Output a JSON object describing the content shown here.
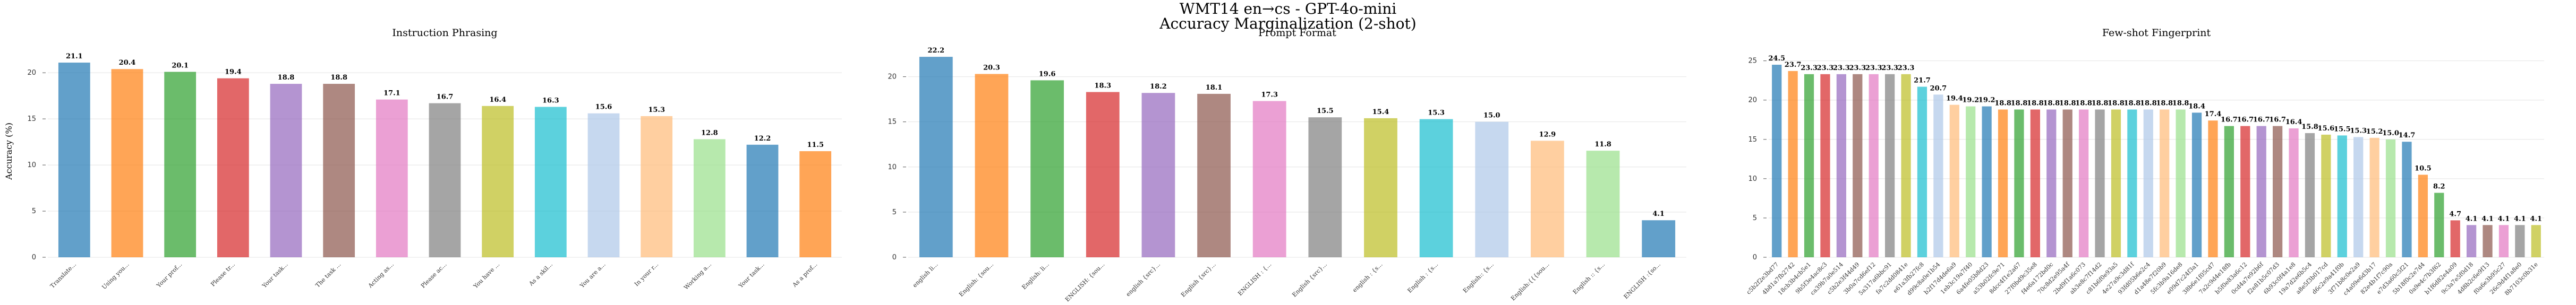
{
  "figure": {
    "title_line1": "WMT14 en→cs - GPT-4o-mini",
    "title_line2": "Accuracy Marginalization (2-shot)"
  },
  "palette": [
    "#1f77b4",
    "#ff7f0e",
    "#2ca02c",
    "#d62728",
    "#9467bd",
    "#8c564b",
    "#e377c2",
    "#7f7f7f",
    "#bcbd22",
    "#17becf",
    "#aec7e8",
    "#ffbb78",
    "#98df8a"
  ],
  "chart_data": [
    {
      "type": "bar",
      "title": "Instruction Phrasing",
      "ylabel": "Accuracy (%)",
      "ylim": [
        0,
        23
      ],
      "yticks": [
        0,
        5,
        10,
        15,
        20
      ],
      "grid": "horizontal",
      "categories": [
        "Translate...",
        "Using you...",
        "Your prof...",
        "Please tr...",
        "Your task...",
        "The task ...",
        "Acting as...",
        "Please ac...",
        "You have ...",
        "As a skil...",
        "You are a...",
        "In your r...",
        "Working a...",
        "Your task...",
        "As a prof..."
      ],
      "values": [
        21.1,
        20.4,
        20.1,
        19.4,
        18.8,
        18.8,
        17.1,
        16.7,
        16.4,
        16.3,
        15.6,
        15.3,
        12.8,
        12.2,
        11.5
      ],
      "value_labels": [
        "21.1",
        "20.4",
        "20.1",
        "19.4",
        "18.8",
        "18.8",
        "17.1",
        "16.7",
        "16.4",
        "16.3",
        "15.6",
        "15.3",
        "12.8",
        "12.2",
        "11.5"
      ]
    },
    {
      "type": "bar",
      "title": "Prompt Format",
      "ylim": [
        0,
        23.5
      ],
      "yticks": [
        0,
        5,
        10,
        15,
        20
      ],
      "grid": "horizontal",
      "categories": [
        "english li...",
        "English: {sou...",
        "English: li...",
        "ENGLISH: {sou...",
        "english {src}...",
        "English {src}...",
        "ENGLISH : {...",
        "English {src}...",
        "english : {s...",
        "English : {s...",
        "English:: {s...",
        "English:{{{sou...",
        "English :: {s...",
        "ENGLISH :{so..."
      ],
      "values": [
        22.2,
        20.3,
        19.6,
        18.3,
        18.2,
        18.1,
        17.3,
        15.5,
        15.4,
        15.3,
        15.0,
        12.9,
        11.8,
        4.1
      ],
      "value_labels": [
        "22.2",
        "20.3",
        "19.6",
        "18.3",
        "18.2",
        "18.1",
        "17.3",
        "15.5",
        "15.4",
        "15.3",
        "15.0",
        "12.9",
        "11.8",
        "4.1"
      ]
    },
    {
      "type": "bar",
      "title": "Few-shot Fingerprint",
      "ylim": [
        0,
        27
      ],
      "yticks": [
        0,
        5,
        10,
        15,
        20,
        25
      ],
      "grid": "horizontal",
      "categories": [
        "c5b2f2e3bd77",
        "4b81a7fb2742",
        "18cb3b4cb5e1",
        "9b5f3e4ac8c3",
        "ca39b7a0e514",
        "c5b2e3f44d49",
        "3b0a7cd6ef12",
        "5a317a6bbc91",
        "fa7c2dd0841e",
        "e61a3fb27fc8",
        "d99c8a0e1b54",
        "b2f17d4de6a9",
        "1eb3c19a7f40",
        "6a4fe05b8d23",
        "a53b02fc9e71",
        "8dcc4f1e2a67",
        "27f0bd9c35e8",
        "f4e6a172bd0c",
        "70c8d2e95a4f",
        "2bd9f1a6c073",
        "ab3e8c7f14d2",
        "c81b6f0e93a5",
        "4e27a9c3d81f",
        "93fd05b6e2c4",
        "d1a48e7f20b9",
        "5fc3b9a16de8",
        "e09d7c24f3a1",
        "38b6e1f05cd7",
        "7a2c9d4e18fb",
        "b5f0e83a6c12",
        "0cd4a7e92b6f",
        "f2e81b5c07d3",
        "6b93c0f4a1e8",
        "19a7d2e6b5c4",
        "a8e5f3b017cd",
        "d6c2e9a41f0b",
        "3f71b8c0e2a9",
        "c4a09e6d3b17",
        "82e4b1f7c90a",
        "e7d3a60c5f21",
        "5b18f0c2e7d4",
        "0a9e4c7b3f62",
        "b1f6d82e4a09",
        "9c3a7e5f0d18",
        "4d8b2c6e9f13",
        "f0a6e3b95c27",
        "26c9d4f1a8e0",
        "8b7103c0b31e"
      ],
      "values": [
        24.5,
        23.7,
        23.3,
        23.3,
        23.3,
        23.3,
        23.3,
        23.3,
        23.3,
        21.7,
        20.7,
        19.4,
        19.2,
        19.2,
        18.8,
        18.8,
        18.8,
        18.8,
        18.8,
        18.8,
        18.8,
        18.8,
        18.8,
        18.8,
        18.8,
        18.8,
        18.4,
        17.4,
        16.7,
        16.7,
        16.7,
        16.7,
        16.4,
        15.8,
        15.6,
        15.5,
        15.3,
        15.2,
        15.0,
        14.7,
        10.5,
        8.2,
        4.7,
        4.1,
        4.1,
        4.1,
        4.1,
        4.1
      ],
      "value_labels": [
        "24.5",
        "23.7",
        "23.3",
        "23.3",
        "23.3",
        "23.3",
        "23.3",
        "23.3",
        "23.3",
        "21.7",
        "20.7",
        "19.4",
        "19.2",
        "19.2",
        "18.8",
        "18.8",
        "18.8",
        "18.8",
        "18.8",
        "18.8",
        "18.8",
        "18.8",
        "18.8",
        "18.8",
        "18.8",
        "18.8",
        "18.4",
        "17.4",
        "16.7",
        "16.7",
        "16.7",
        "16.7",
        "16.4",
        "15.8",
        "15.6",
        "15.5",
        "15.3",
        "15.2",
        "15.0",
        "14.7",
        "10.5",
        "8.2",
        "4.7",
        "4.1",
        "4.1",
        "4.1",
        "4.1",
        "4.1"
      ]
    }
  ]
}
